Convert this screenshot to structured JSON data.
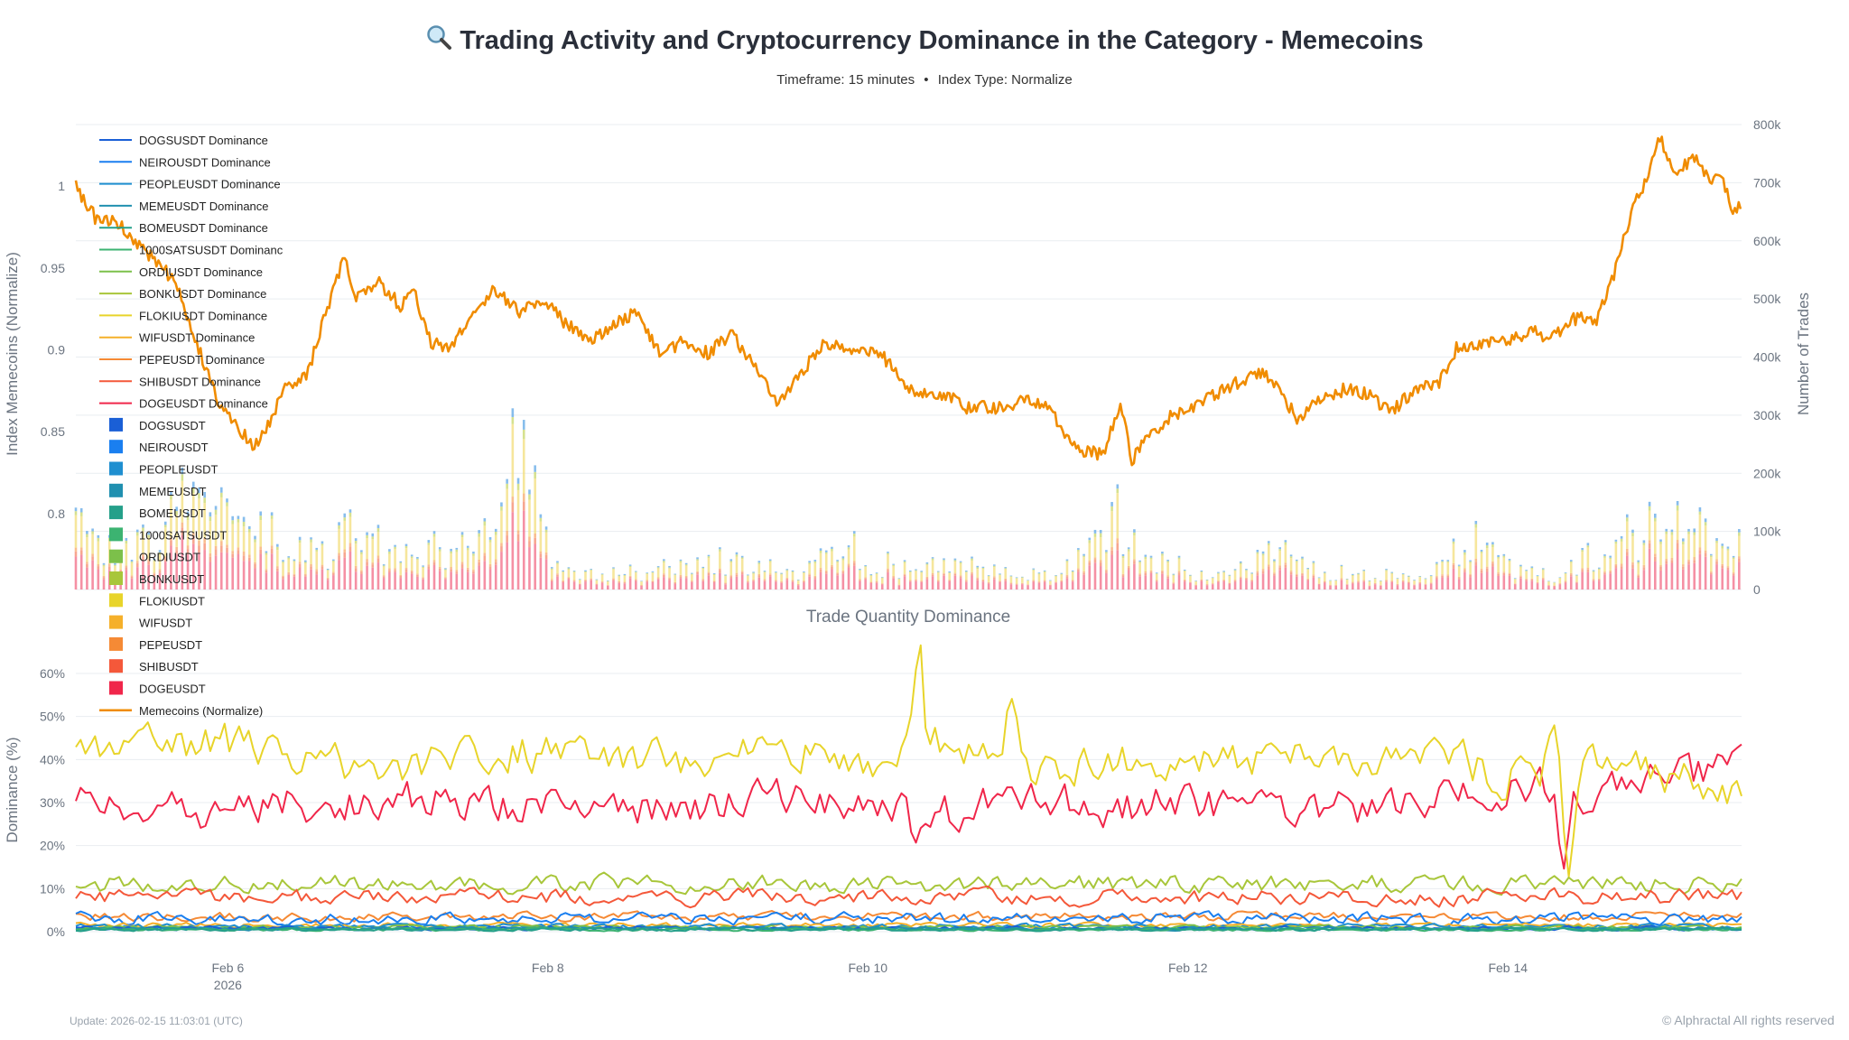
{
  "header": {
    "title": "Trading Activity and Cryptocurrency Dominance in the Category - Memecoins",
    "title_icon": "magnifying-glass-icon",
    "timeframe": "Timeframe: 15 minutes",
    "separator": "•",
    "index_type": "Index Type: Normalize"
  },
  "footer": {
    "update": "Update: 2026-02-15 11:03:01 (UTC)",
    "copyright": "© Alphractal All rights reserved"
  },
  "chart_data": [
    {
      "type": "line+stacked-bar",
      "name": "top-panel",
      "ylabel": "Index Memecoins (Normalize)",
      "y2label": "Number of Trades",
      "ylim": [
        0.7536,
        1.0376
      ],
      "y2lim": [
        0,
        800000
      ],
      "yticks": [
        "1",
        "0.95",
        "0.9",
        "0.85",
        "0.8"
      ],
      "ytick_values": [
        1,
        0.95,
        0.9,
        0.85,
        0.8
      ],
      "y2ticks": [
        "800k",
        "700k",
        "600k",
        "500k",
        "400k",
        "300k",
        "200k",
        "100k",
        "0"
      ],
      "y2tick_values": [
        800000,
        700000,
        600000,
        500000,
        400000,
        300000,
        200000,
        100000,
        0
      ],
      "x_unit": "day of February 2026 (UTC)",
      "xlim": [
        5.05,
        15.46
      ],
      "grid": true,
      "index_series": {
        "name": "Memecoins (Normalize)",
        "color": "#f08c00",
        "x": [
          5.05,
          5.17,
          5.32,
          5.46,
          5.68,
          5.83,
          5.94,
          6.05,
          6.16,
          6.24,
          6.35,
          6.49,
          6.6,
          6.73,
          6.79,
          6.94,
          7.08,
          7.16,
          7.27,
          7.38,
          7.52,
          7.67,
          7.82,
          7.97,
          8.11,
          8.26,
          8.41,
          8.56,
          8.7,
          8.85,
          9.0,
          9.15,
          9.29,
          9.44,
          9.59,
          9.73,
          9.88,
          10.07,
          10.18,
          10.29,
          10.47,
          10.62,
          10.8,
          10.99,
          11.13,
          11.24,
          11.36,
          11.47,
          11.58,
          11.65,
          11.76,
          11.87,
          12.02,
          12.17,
          12.31,
          12.46,
          12.57,
          12.68,
          12.83,
          12.98,
          13.12,
          13.27,
          13.42,
          13.57,
          13.68,
          13.86,
          14.01,
          14.15,
          14.26,
          14.41,
          14.56,
          14.67,
          14.78,
          14.85,
          14.92,
          14.96,
          15.04,
          15.16,
          15.26,
          15.33,
          15.41,
          15.46
        ],
        "y": [
          1.0,
          0.981,
          0.977,
          0.963,
          0.941,
          0.898,
          0.869,
          0.855,
          0.84,
          0.851,
          0.876,
          0.883,
          0.919,
          0.957,
          0.93,
          0.941,
          0.927,
          0.937,
          0.905,
          0.901,
          0.919,
          0.937,
          0.923,
          0.93,
          0.916,
          0.905,
          0.916,
          0.923,
          0.898,
          0.905,
          0.898,
          0.909,
          0.891,
          0.865,
          0.887,
          0.905,
          0.898,
          0.898,
          0.887,
          0.873,
          0.873,
          0.865,
          0.865,
          0.869,
          0.865,
          0.847,
          0.837,
          0.837,
          0.865,
          0.833,
          0.847,
          0.858,
          0.865,
          0.873,
          0.88,
          0.887,
          0.876,
          0.858,
          0.869,
          0.876,
          0.873,
          0.862,
          0.876,
          0.88,
          0.901,
          0.905,
          0.905,
          0.912,
          0.905,
          0.919,
          0.919,
          0.948,
          0.988,
          0.999,
          1.024,
          1.027,
          1.006,
          1.019,
          1.002,
          1.006,
          0.984,
          0.988
        ]
      },
      "trades_series": {
        "name": "Number of Trades (stacked by coin)",
        "x": [
          5.05,
          5.3,
          5.55,
          5.8,
          6.05,
          6.3,
          6.55,
          6.8,
          7.05,
          7.3,
          7.55,
          7.8,
          8.05,
          8.3,
          8.55,
          8.8,
          9.05,
          9.3,
          9.55,
          9.8,
          10.05,
          10.3,
          10.55,
          10.8,
          11.05,
          11.3,
          11.55,
          11.8,
          12.05,
          12.3,
          12.55,
          12.8,
          13.05,
          13.3,
          13.55,
          13.8,
          14.05,
          14.3,
          14.55,
          14.8,
          15.05,
          15.3,
          15.46
        ],
        "total_k": [
          110,
          70,
          90,
          180,
          150,
          100,
          60,
          120,
          60,
          90,
          70,
          280,
          40,
          30,
          30,
          45,
          60,
          40,
          35,
          90,
          50,
          35,
          55,
          40,
          30,
          45,
          140,
          60,
          35,
          40,
          90,
          40,
          30,
          30,
          40,
          100,
          35,
          30,
          70,
          110,
          120,
          90,
          80
        ]
      }
    },
    {
      "type": "line",
      "name": "bottom-panel",
      "title": "Trade Quantity Dominance",
      "ylabel": "Dominance (%)",
      "ylim": [
        0,
        68.6
      ],
      "yticks": [
        "60%",
        "50%",
        "40%",
        "30%",
        "20%",
        "10%",
        "0%"
      ],
      "ytick_values": [
        60,
        50,
        40,
        30,
        20,
        10,
        0
      ],
      "xticks": [
        "Feb 6",
        "Feb 8",
        "Feb 10",
        "Feb 12",
        "Feb 14"
      ],
      "xtick_values": [
        6,
        8,
        10,
        12,
        14
      ],
      "xtick_year": "2026",
      "grid": true,
      "sample_x": [
        5.0,
        5.5,
        6.0,
        6.5,
        7.0,
        7.5,
        8.0,
        8.5,
        9.0,
        9.5,
        10.0,
        10.5,
        11.0,
        11.5,
        12.0,
        12.5,
        13.0,
        13.5,
        14.0,
        14.5,
        15.0,
        15.5
      ],
      "series": [
        {
          "name": "DOGSUSDT",
          "color": "#1a5fd6",
          "mean": 0.8,
          "amp": 0.4
        },
        {
          "name": "NEIROUSDT",
          "color": "#1a7ff0",
          "mean": 3.0,
          "amp": 1.2
        },
        {
          "name": "PEOPLEUSDT",
          "color": "#1f8fd0",
          "mean": 1.2,
          "amp": 0.5
        },
        {
          "name": "MEMEUSDT",
          "color": "#2090b0",
          "mean": 0.7,
          "amp": 0.3
        },
        {
          "name": "BOMEUSDT",
          "color": "#25a08a",
          "mean": 0.5,
          "amp": 0.3
        },
        {
          "name": "1000SATSUSDT",
          "color": "#3cb371",
          "mean": 0.5,
          "amp": 0.3
        },
        {
          "name": "ORDIUSDT",
          "color": "#7cc04a",
          "mean": 1.0,
          "amp": 0.4
        },
        {
          "name": "BONKUSDT",
          "color": "#a8c63a",
          "mean": 11.0,
          "amp": 1.8
        },
        {
          "name": "FLOKIUSDT",
          "color": "#e8d42a",
          "amp": 4.0,
          "values": [
            42,
            43,
            44,
            40,
            38,
            41,
            42,
            41,
            40,
            42,
            40,
            44,
            38,
            40,
            39,
            40,
            41,
            42,
            36,
            38,
            36,
            33
          ]
        },
        {
          "name": "WIFUSDT",
          "color": "#f5b02a",
          "mean": 1.5,
          "amp": 0.5
        },
        {
          "name": "PEPEUSDT",
          "color": "#f58a35",
          "mean": 3.5,
          "amp": 0.9
        },
        {
          "name": "SHIBUSDT",
          "color": "#f4583a",
          "mean": 8.0,
          "amp": 1.6
        },
        {
          "name": "DOGEUSDT",
          "color": "#f0264a",
          "amp": 4.0,
          "values": [
            31,
            28,
            27,
            30,
            31,
            30,
            28,
            29,
            30,
            31,
            30,
            28,
            30,
            29,
            30,
            29,
            28,
            30,
            34,
            32,
            35,
            40
          ]
        }
      ],
      "annotations_peaks": [
        {
          "series": "FLOKIUSDT",
          "x": 10.32,
          "value": 66
        },
        {
          "series": "FLOKIUSDT",
          "x": 10.9,
          "value": 56
        },
        {
          "series": "FLOKIUSDT",
          "x": 14.28,
          "value": 50
        },
        {
          "series": "FLOKIUSDT",
          "x": 14.38,
          "value": 12
        },
        {
          "series": "DOGEUSDT",
          "x": 10.3,
          "value": 17
        },
        {
          "series": "DOGEUSDT",
          "x": 14.35,
          "value": 12
        },
        {
          "series": "DOGEUSDT",
          "x": 15.4,
          "value": 45
        }
      ]
    }
  ],
  "legend": {
    "placement": "top-left",
    "line_suffix": " Dominance",
    "line_items": [
      "DOGSUSDT Dominance",
      "NEIROUSDT Dominance",
      "PEOPLEUSDT Dominance",
      "MEMEUSDT Dominance",
      "BOMEUSDT Dominance",
      "1000SATSUSDT Dominanc",
      "ORDIUSDT Dominance",
      "BONKUSDT Dominance",
      "FLOKIUSDT Dominance",
      "WIFUSDT Dominance",
      "PEPEUSDT Dominance",
      "SHIBUSDT Dominance",
      "DOGEUSDT Dominance"
    ],
    "bar_items": [
      "DOGSUSDT",
      "NEIROUSDT",
      "PEOPLEUSDT",
      "MEMEUSDT",
      "BOMEUSDT",
      "1000SATSUSDT",
      "ORDIUSDT",
      "BONKUSDT",
      "FLOKIUSDT",
      "WIFUSDT",
      "PEPEUSDT",
      "SHIBUSDT",
      "DOGEUSDT"
    ],
    "index_item": "Memecoins (Normalize)"
  }
}
